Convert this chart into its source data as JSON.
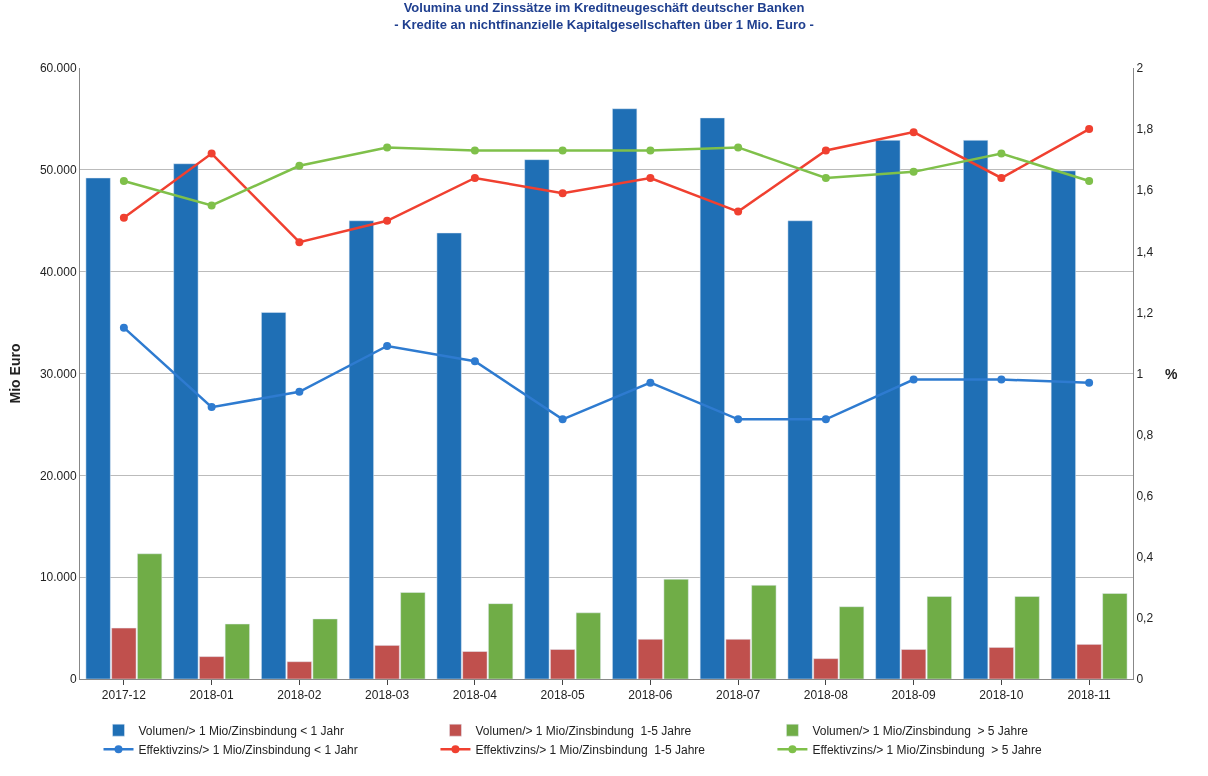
{
  "chart_data": {
    "type": "bar",
    "title": "Volumina und Zinssätze im Kreditneugeschäft deutscher Banken",
    "subtitle": "- Kredite an nichtfinanzielle Kapitalgesellschaften über 1 Mio. Euro -",
    "ylabel": "Mio Euro",
    "y2label": "%",
    "categories": [
      "2017-12",
      "2018-01",
      "2018-02",
      "2018-03",
      "2018-04",
      "2018-05",
      "2018-06",
      "2018-07",
      "2018-08",
      "2018-09",
      "2018-10",
      "2018-11"
    ],
    "series": [
      {
        "name": "Volumen/> 1 Mio/Zinsbindung < 1 Jahr",
        "color": "#1f6fb5",
        "values": [
          49200,
          50600,
          36000,
          45000,
          43800,
          51000,
          56000,
          55100,
          45000,
          52900,
          52900,
          49900
        ]
      },
      {
        "name": "Volumen/> 1 Mio/Zinsbindung  1-5 Jahre",
        "color": "#c0504d",
        "values": [
          5000,
          2200,
          1700,
          3300,
          2700,
          2900,
          3900,
          3900,
          2000,
          2900,
          3100,
          3400
        ]
      },
      {
        "name": "Volumen/> 1 Mio/Zinsbindung  > 5 Jahre",
        "color": "#70ad47",
        "values": [
          12300,
          5400,
          5900,
          8500,
          7400,
          6500,
          9800,
          9200,
          7100,
          8100,
          8100,
          8400
        ]
      },
      {
        "name": "Effektivzins/> 1 Mio/Zinsbindung < 1 Jahr",
        "type": "line",
        "axis": "y2",
        "color": "#2e7bd0",
        "values": [
          1.15,
          0.89,
          0.94,
          1.09,
          1.04,
          0.85,
          0.97,
          0.85,
          0.85,
          0.98,
          0.98,
          0.97
        ]
      },
      {
        "name": "Effektivzins/> 1 Mio/Zinsbindung  1-5 Jahre",
        "type": "line",
        "axis": "y2",
        "color": "#f04030",
        "values": [
          1.51,
          1.72,
          1.43,
          1.5,
          1.64,
          1.59,
          1.64,
          1.53,
          1.73,
          1.79,
          1.64,
          1.8
        ]
      },
      {
        "name": "Effektivzins/> 1 Mio/Zinsbindung  > 5 Jahre",
        "type": "line",
        "axis": "y2",
        "color": "#7fc04a",
        "values": [
          1.63,
          1.55,
          1.68,
          1.74,
          1.73,
          1.73,
          1.73,
          1.74,
          1.64,
          1.66,
          1.72,
          1.63
        ]
      }
    ],
    "ylim": [
      0,
      60000
    ],
    "yticks": [
      {
        "value": 0,
        "label": "0"
      },
      {
        "value": 10000,
        "label": "10.000"
      },
      {
        "value": 20000,
        "label": "20.000"
      },
      {
        "value": 30000,
        "label": "30.000"
      },
      {
        "value": 40000,
        "label": "40.000"
      },
      {
        "value": 50000,
        "label": "50.000"
      },
      {
        "value": 60000,
        "label": "60.000"
      }
    ],
    "y2lim": [
      0,
      2
    ],
    "y2ticks": [
      0,
      {
        "value": 0.2,
        "label": "0,2"
      },
      {
        "value": 0.4,
        "label": "0,4"
      },
      {
        "value": 0.6,
        "label": "0,6"
      },
      {
        "value": 0.8,
        "label": "0,8"
      },
      1,
      {
        "value": 1.2,
        "label": "1,2"
      },
      {
        "value": 1.4,
        "label": "1,4"
      },
      {
        "value": 1.6,
        "label": "1,6"
      },
      {
        "value": 1.8,
        "label": "1,8"
      },
      2
    ],
    "grid": "y",
    "legend": "bottom",
    "marker": "circle",
    "line_style": "solid"
  }
}
